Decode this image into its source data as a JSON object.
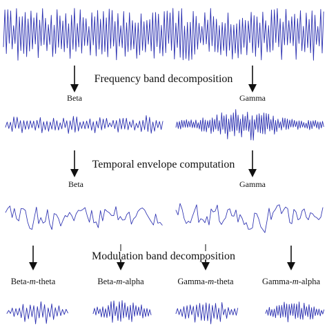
{
  "steps": {
    "frequency": "Frequency band decomposition",
    "envelope": "Temporal envelope computation",
    "modulation": "Modulation band decomposition"
  },
  "bands": {
    "beta": "Beta",
    "gamma": "Gamma"
  },
  "modulation_bands": [
    {
      "prefix": "Beta-",
      "mod": "m",
      "suffix": "-theta"
    },
    {
      "prefix": "Beta-",
      "mod": "m",
      "suffix": "-alpha"
    },
    {
      "prefix": "Gamma-",
      "mod": "m",
      "suffix": "-theta"
    },
    {
      "prefix": "Gamma-",
      "mod": "m",
      "suffix": "-alpha"
    }
  ],
  "colors": {
    "signal": "#2a2fb0",
    "text": "#111111"
  }
}
